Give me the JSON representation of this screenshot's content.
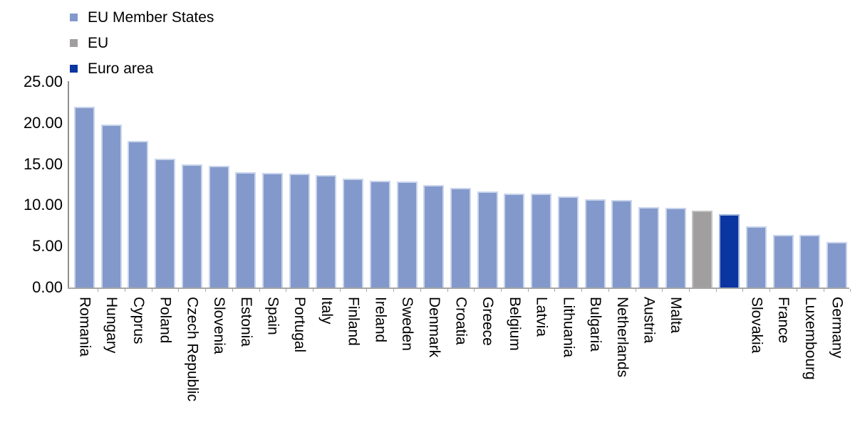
{
  "chart_data": {
    "type": "bar",
    "title": "",
    "legend_position": "top-left",
    "grid": false,
    "x_labels_rotated_90_clockwise": true,
    "axis_color": "#a6a6a6",
    "text_color": "#000000",
    "legend": [
      {
        "label": "EU Member States",
        "color": "#8499CB",
        "border": "#c9d5ec"
      },
      {
        "label": "EU",
        "color": "#A09E9E",
        "border": "#c4c3c3"
      },
      {
        "label": "Euro area",
        "color": "#0B35A0",
        "border": "#9db3dc"
      }
    ],
    "y_axis": {
      "min": 0,
      "max": 25,
      "tick_interval": 5,
      "tick_labels": [
        "0.00",
        "5.00",
        "10.00",
        "15.00",
        "20.00",
        "25.00"
      ]
    },
    "note": "EU and Euro area bars have no category label on the x-axis",
    "bars": [
      {
        "label": "Romania",
        "axis_label": "Romania",
        "value": 22.0,
        "series": "EU Member States"
      },
      {
        "label": "Hungary",
        "axis_label": "Hungary",
        "value": 19.8,
        "series": "EU Member States"
      },
      {
        "label": "Cyprus",
        "axis_label": "Cyprus",
        "value": 17.8,
        "series": "EU Member States"
      },
      {
        "label": "Poland",
        "axis_label": "Poland",
        "value": 15.7,
        "series": "EU Member States"
      },
      {
        "label": "Czech Republic",
        "axis_label": "Czech Republic",
        "value": 15.0,
        "series": "EU Member States"
      },
      {
        "label": "Slovenia",
        "axis_label": "Slovenia",
        "value": 14.8,
        "series": "EU Member States"
      },
      {
        "label": "Estonia",
        "axis_label": "Estonia",
        "value": 14.0,
        "series": "EU Member States"
      },
      {
        "label": "Spain",
        "axis_label": "Spain",
        "value": 13.9,
        "series": "EU Member States"
      },
      {
        "label": "Portugal",
        "axis_label": "Portugal",
        "value": 13.8,
        "series": "EU Member States"
      },
      {
        "label": "Italy",
        "axis_label": "Italy",
        "value": 13.7,
        "series": "EU Member States"
      },
      {
        "label": "Finland",
        "axis_label": "Finland",
        "value": 13.2,
        "series": "EU Member States"
      },
      {
        "label": "Ireland",
        "axis_label": "Ireland",
        "value": 13.0,
        "series": "EU Member States"
      },
      {
        "label": "Sweden",
        "axis_label": "Sweden",
        "value": 12.9,
        "series": "EU Member States"
      },
      {
        "label": "Denmark",
        "axis_label": "Denmark",
        "value": 12.5,
        "series": "EU Member States"
      },
      {
        "label": "Croatia",
        "axis_label": "Croatia",
        "value": 12.1,
        "series": "EU Member States"
      },
      {
        "label": "Greece",
        "axis_label": "Greece",
        "value": 11.7,
        "series": "EU Member States"
      },
      {
        "label": "Belgium",
        "axis_label": "Belgium",
        "value": 11.4,
        "series": "EU Member States"
      },
      {
        "label": "Latvia",
        "axis_label": "Latvia",
        "value": 11.4,
        "series": "EU Member States"
      },
      {
        "label": "Lithuania",
        "axis_label": "Lithuania",
        "value": 11.1,
        "series": "EU Member States"
      },
      {
        "label": "Bulgaria",
        "axis_label": "Bulgaria",
        "value": 10.7,
        "series": "EU Member States"
      },
      {
        "label": "Netherlands",
        "axis_label": "Netherlands",
        "value": 10.6,
        "series": "EU Member States"
      },
      {
        "label": "Austria",
        "axis_label": "Austria",
        "value": 9.8,
        "series": "EU Member States"
      },
      {
        "label": "Malta",
        "axis_label": "Malta",
        "value": 9.7,
        "series": "EU Member States"
      },
      {
        "label": "EU",
        "axis_label": "",
        "value": 9.3,
        "series": "EU"
      },
      {
        "label": "Euro area",
        "axis_label": "",
        "value": 8.9,
        "series": "Euro area"
      },
      {
        "label": "Slovakia",
        "axis_label": "Slovakia",
        "value": 7.4,
        "series": "EU Member States"
      },
      {
        "label": "France",
        "axis_label": "France",
        "value": 6.4,
        "series": "EU Member States"
      },
      {
        "label": "Luxembourg",
        "axis_label": "Luxembourg",
        "value": 6.4,
        "series": "EU Member States"
      },
      {
        "label": "Germany",
        "axis_label": "Germany",
        "value": 5.5,
        "series": "EU Member States"
      }
    ]
  }
}
